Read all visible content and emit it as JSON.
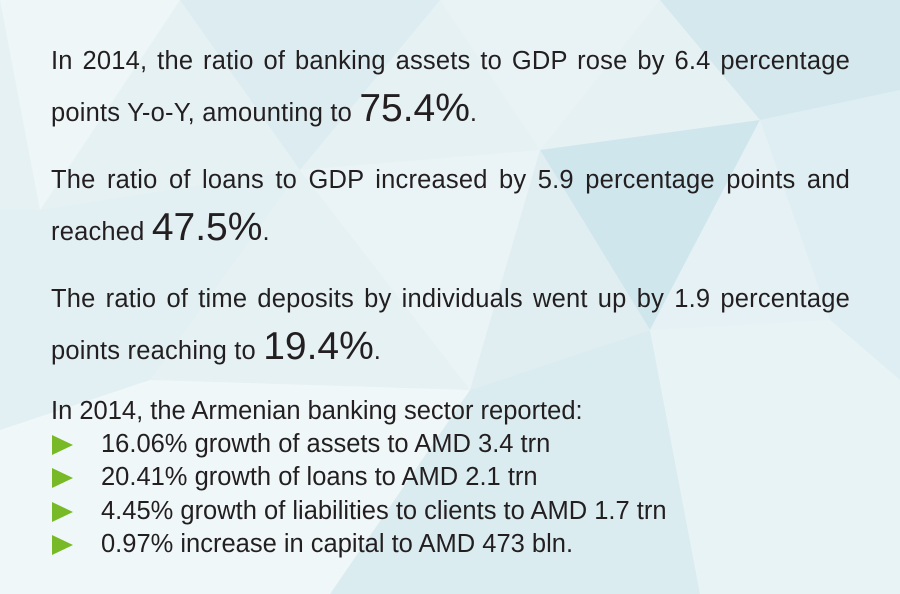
{
  "paragraphs": [
    {
      "lead": "In 2014, the ratio of banking assets to GDP rose by 6.4 percentage points Y-o-Y, amounting to ",
      "highlight": "75.4%",
      "tail": "."
    },
    {
      "lead": "The ratio of loans to GDP increased by 5.9 percentage points and reached ",
      "highlight": "47.5%",
      "tail": "."
    },
    {
      "lead": "The ratio of time deposits by individuals went up by 1.9 percentage points reaching to ",
      "highlight": "19.4%",
      "tail": "."
    }
  ],
  "summary": {
    "intro": "In 2014, the Armenian banking sector reported:",
    "bullet_icon": "green-triangle-bullet-icon",
    "items": [
      "16.06% growth of assets to AMD 3.4 trn",
      "20.41% growth of loans to AMD 2.1 trn",
      "4.45% growth of liabilities to clients to AMD 1.7 trn",
      "0.97% increase in capital to AMD 473 bln."
    ]
  },
  "colors": {
    "text": "#231f20",
    "bullet": "#78b928",
    "background": "#e6f1f4"
  }
}
